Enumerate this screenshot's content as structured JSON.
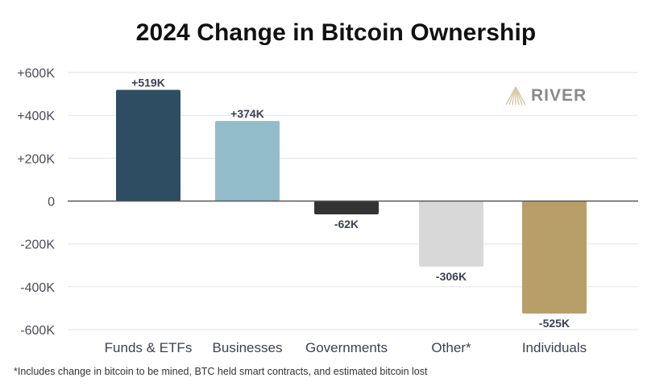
{
  "chart_data": {
    "type": "bar",
    "title": "2024 Change in Bitcoin Ownership",
    "xlabel": "",
    "ylabel": "",
    "ylim": [
      -600000,
      600000
    ],
    "yticks": [
      600000,
      400000,
      200000,
      0,
      -200000,
      -400000,
      -600000
    ],
    "ytick_labels": [
      "+600K",
      "+400K",
      "+200K",
      "0",
      "-200K",
      "-400K",
      "-600K"
    ],
    "grid": true,
    "categories": [
      "Funds & ETFs",
      "Businesses",
      "Governments",
      "Other*",
      "Individuals"
    ],
    "values": [
      519000,
      374000,
      -62000,
      -306000,
      -525000
    ],
    "data_labels": [
      "+519K",
      "+374K",
      "-62K",
      "-306K",
      "-525K"
    ],
    "colors": [
      "#2e4d62",
      "#93bccb",
      "#333333",
      "#d8d8d8",
      "#b89e69"
    ],
    "footnote": "*Includes change in bitcoin to be mined, BTC held smart contracts, and estimated bitcoin lost"
  },
  "brand": {
    "name": "RIVER",
    "logo_color": "#d8c8a4",
    "text_color": "#8a8a8a"
  }
}
